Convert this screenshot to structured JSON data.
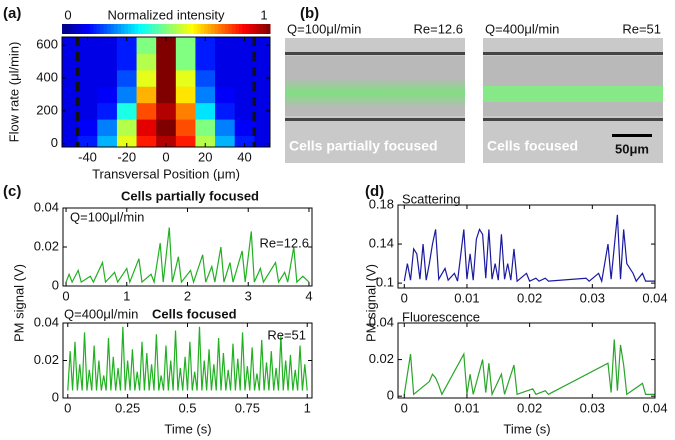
{
  "chart_data": [
    {
      "type": "heatmap",
      "panel": "(a)",
      "xlabel": "Transversal Position (μm)",
      "ylabel": "Flow rate (μl/min)",
      "colorbar": {
        "label": "Normalized intensity",
        "ticks": [
          0,
          1
        ]
      },
      "x": [
        -50,
        -40,
        -30,
        -20,
        -10,
        0,
        10,
        20,
        30,
        40,
        50
      ],
      "y": [
        0,
        100,
        200,
        300,
        400,
        500,
        600
      ],
      "values": [
        [
          0.1,
          0.15,
          0.3,
          0.6,
          0.85,
          0.95,
          0.85,
          0.55,
          0.3,
          0.15,
          0.1
        ],
        [
          0.1,
          0.12,
          0.25,
          0.55,
          0.9,
          1,
          0.8,
          0.5,
          0.25,
          0.12,
          0.1
        ],
        [
          0.1,
          0.1,
          0.15,
          0.4,
          0.8,
          0.95,
          0.75,
          0.35,
          0.15,
          0.1,
          0.1
        ],
        [
          0.1,
          0.1,
          0.12,
          0.25,
          0.7,
          1,
          0.65,
          0.25,
          0.12,
          0.1,
          0.1
        ],
        [
          0.1,
          0.1,
          0.1,
          0.2,
          0.6,
          1,
          0.6,
          0.2,
          0.1,
          0.1,
          0.1
        ],
        [
          0.1,
          0.1,
          0.1,
          0.15,
          0.55,
          1,
          0.5,
          0.15,
          0.1,
          0.1,
          0.1
        ],
        [
          0.1,
          0.1,
          0.1,
          0.15,
          0.5,
          1,
          0.5,
          0.15,
          0.1,
          0.1,
          0.1
        ]
      ],
      "walls": [
        -45,
        45
      ],
      "xlim": [
        -53,
        53
      ],
      "xticks": [
        -40,
        -20,
        0,
        20,
        40
      ],
      "ylim": [
        -20,
        650
      ],
      "yticks": [
        0,
        200,
        400,
        600
      ]
    },
    {
      "type": "line",
      "panel": "(c)",
      "title": "Cells partially focused",
      "flow_label": "Q=100μl/min",
      "re_label": "Re=12.6",
      "ylabel": "PM signal (V)",
      "xlim": [
        -0.05,
        4.05
      ],
      "xticks": [
        0,
        1,
        2,
        3,
        4
      ],
      "ylim": [
        0,
        0.04
      ],
      "yticks": [
        0,
        0.02,
        0.04
      ],
      "x": [
        0,
        0.05,
        0.1,
        0.2,
        0.25,
        0.4,
        0.45,
        0.6,
        0.65,
        0.8,
        0.85,
        1.0,
        1.05,
        1.2,
        1.25,
        1.4,
        1.45,
        1.55,
        1.6,
        1.7,
        1.75,
        1.85,
        1.9,
        2.05,
        2.1,
        2.25,
        2.3,
        2.4,
        2.45,
        2.55,
        2.6,
        2.7,
        2.75,
        2.9,
        2.95,
        3.05,
        3.1,
        3.2,
        3.25,
        3.45,
        3.5,
        3.6,
        3.65,
        3.75,
        3.8,
        3.9,
        4.0
      ],
      "series": [
        {
          "color": "#22b022",
          "values": [
            0.002,
            0.006,
            0.002,
            0.008,
            0.002,
            0.005,
            0.002,
            0.012,
            0.002,
            0.007,
            0.002,
            0.009,
            0.002,
            0.014,
            0.002,
            0.006,
            0.002,
            0.022,
            0.002,
            0.03,
            0.002,
            0.015,
            0.002,
            0.008,
            0.002,
            0.016,
            0.002,
            0.01,
            0.002,
            0.02,
            0.002,
            0.012,
            0.002,
            0.018,
            0.002,
            0.028,
            0.002,
            0.009,
            0.002,
            0.012,
            0.002,
            0.007,
            0.002,
            0.02,
            0.002,
            0.005,
            0.002
          ]
        }
      ]
    },
    {
      "type": "line",
      "title": "Cells focused",
      "flow_label": "Q=400μl/min",
      "re_label": "Re=51",
      "xlabel": "Time (s)",
      "xlim": [
        -0.02,
        1.02
      ],
      "xticks": [
        0,
        0.25,
        0.5,
        0.75,
        1
      ],
      "ylim": [
        0,
        0.04
      ],
      "yticks": [
        0,
        0.02,
        0.04
      ],
      "x": [
        0,
        0.01,
        0.02,
        0.03,
        0.04,
        0.05,
        0.06,
        0.07,
        0.08,
        0.09,
        0.1,
        0.11,
        0.12,
        0.13,
        0.14,
        0.15,
        0.16,
        0.17,
        0.18,
        0.19,
        0.2,
        0.21,
        0.22,
        0.23,
        0.24,
        0.25,
        0.26,
        0.27,
        0.28,
        0.29,
        0.3,
        0.31,
        0.32,
        0.33,
        0.34,
        0.35,
        0.36,
        0.37,
        0.38,
        0.39,
        0.4,
        0.41,
        0.42,
        0.43,
        0.44,
        0.45,
        0.46,
        0.47,
        0.48,
        0.49,
        0.5,
        0.51,
        0.52,
        0.53,
        0.54,
        0.55,
        0.56,
        0.57,
        0.58,
        0.59,
        0.6,
        0.61,
        0.62,
        0.63,
        0.64,
        0.65,
        0.66,
        0.67,
        0.68,
        0.69,
        0.7,
        0.71,
        0.72,
        0.73,
        0.74,
        0.75,
        0.76,
        0.77,
        0.78,
        0.79,
        0.8,
        0.81,
        0.82,
        0.83,
        0.84,
        0.85,
        0.86,
        0.87,
        0.88,
        0.89,
        0.9,
        0.91,
        0.92,
        0.93,
        0.94,
        0.95,
        0.96,
        0.97,
        0.98,
        0.99,
        1
      ],
      "series": [
        {
          "color": "#22b022",
          "values": [
            0.004,
            0.025,
            0.004,
            0.03,
            0.004,
            0.018,
            0.004,
            0.035,
            0.004,
            0.015,
            0.004,
            0.028,
            0.004,
            0.02,
            0.004,
            0.012,
            0.004,
            0.032,
            0.004,
            0.022,
            0.004,
            0.016,
            0.004,
            0.038,
            0.004,
            0.02,
            0.004,
            0.026,
            0.004,
            0.014,
            0.004,
            0.03,
            0.004,
            0.024,
            0.004,
            0.018,
            0.004,
            0.034,
            0.004,
            0.012,
            0.004,
            0.028,
            0.004,
            0.02,
            0.004,
            0.036,
            0.004,
            0.016,
            0.004,
            0.022,
            0.004,
            0.03,
            0.004,
            0.014,
            0.004,
            0.038,
            0.004,
            0.02,
            0.004,
            0.026,
            0.004,
            0.018,
            0.004,
            0.032,
            0.004,
            0.024,
            0.004,
            0.015,
            0.004,
            0.029,
            0.004,
            0.021,
            0.004,
            0.035,
            0.004,
            0.017,
            0.004,
            0.027,
            0.004,
            0.013,
            0.004,
            0.031,
            0.004,
            0.019,
            0.004,
            0.025,
            0.004,
            0.016,
            0.004,
            0.033,
            0.004,
            0.02,
            0.004,
            0.023,
            0.004,
            0.015,
            0.004,
            0.028,
            0.004,
            0.018,
            0.004
          ]
        }
      ]
    },
    {
      "type": "line",
      "panel": "(d)",
      "label": "Scattering",
      "ylabel": "PM signal (V)",
      "xlim": [
        -0.001,
        0.04
      ],
      "xticks": [
        0,
        0.01,
        0.02,
        0.03,
        0.04
      ],
      "ylim": [
        0.095,
        0.18
      ],
      "yticks": [
        0.1,
        0.14,
        0.18
      ],
      "x": [
        0,
        0.0005,
        0.001,
        0.0015,
        0.002,
        0.0025,
        0.003,
        0.0035,
        0.004,
        0.0045,
        0.005,
        0.0055,
        0.0065,
        0.007,
        0.008,
        0.0085,
        0.0095,
        0.01,
        0.0105,
        0.011,
        0.0115,
        0.012,
        0.0125,
        0.013,
        0.0135,
        0.014,
        0.0145,
        0.015,
        0.0155,
        0.016,
        0.0165,
        0.017,
        0.0175,
        0.018,
        0.0195,
        0.02,
        0.021,
        0.0215,
        0.0225,
        0.023,
        0.029,
        0.0295,
        0.031,
        0.0315,
        0.0325,
        0.033,
        0.034,
        0.0345,
        0.035,
        0.0355,
        0.0365,
        0.037,
        0.038,
        0.0385,
        0.04
      ],
      "series": [
        {
          "color": "#1a1aa0",
          "values": [
            0.102,
            0.12,
            0.103,
            0.135,
            0.13,
            0.104,
            0.14,
            0.103,
            0.12,
            0.14,
            0.155,
            0.104,
            0.115,
            0.103,
            0.11,
            0.102,
            0.155,
            0.104,
            0.13,
            0.103,
            0.145,
            0.155,
            0.15,
            0.105,
            0.155,
            0.104,
            0.12,
            0.103,
            0.15,
            0.104,
            0.12,
            0.103,
            0.135,
            0.102,
            0.11,
            0.102,
            0.105,
            0.102,
            0.105,
            0.102,
            0.105,
            0.102,
            0.11,
            0.102,
            0.14,
            0.104,
            0.17,
            0.104,
            0.155,
            0.12,
            0.11,
            0.102,
            0.11,
            0.102,
            0.102
          ]
        }
      ]
    },
    {
      "type": "line",
      "label": "Fluorescence",
      "xlabel": "Time (s)",
      "xlim": [
        -0.001,
        0.04
      ],
      "xticks": [
        0,
        0.01,
        0.02,
        0.03,
        0.04
      ],
      "ylim": [
        -0.001,
        0.04
      ],
      "yticks": [
        0,
        0.02,
        0.04
      ],
      "x": [
        0,
        0.001,
        0.0015,
        0.004,
        0.0045,
        0.005,
        0.0055,
        0.006,
        0.0095,
        0.01,
        0.0105,
        0.011,
        0.0125,
        0.013,
        0.0135,
        0.014,
        0.0155,
        0.016,
        0.0175,
        0.018,
        0.0205,
        0.021,
        0.0225,
        0.023,
        0.0325,
        0.033,
        0.0335,
        0.034,
        0.0345,
        0.035,
        0.0355,
        0.038,
        0.0385,
        0.04
      ],
      "series": [
        {
          "color": "#2aa52a",
          "values": [
            0.001,
            0.023,
            0.001,
            0.008,
            0.012,
            0.01,
            0.006,
            0.001,
            0.023,
            0.001,
            0.012,
            0.001,
            0.02,
            0.002,
            0.018,
            0.001,
            0.012,
            0.001,
            0.017,
            0.001,
            0.004,
            0.001,
            0.003,
            0.001,
            0.018,
            0.002,
            0.031,
            0.003,
            0.028,
            0.017,
            0.001,
            0.007,
            0.001,
            0.001
          ]
        }
      ]
    }
  ],
  "images": {
    "panel": "(b)",
    "items": [
      {
        "top_left": "Q=100μl/min",
        "top_right": "Re=12.6",
        "caption": "Cells partially focused"
      },
      {
        "top_left": "Q=400μl/min",
        "top_right": "Re=51",
        "caption": "Cells focused",
        "scale_bar": "50μm"
      }
    ]
  }
}
